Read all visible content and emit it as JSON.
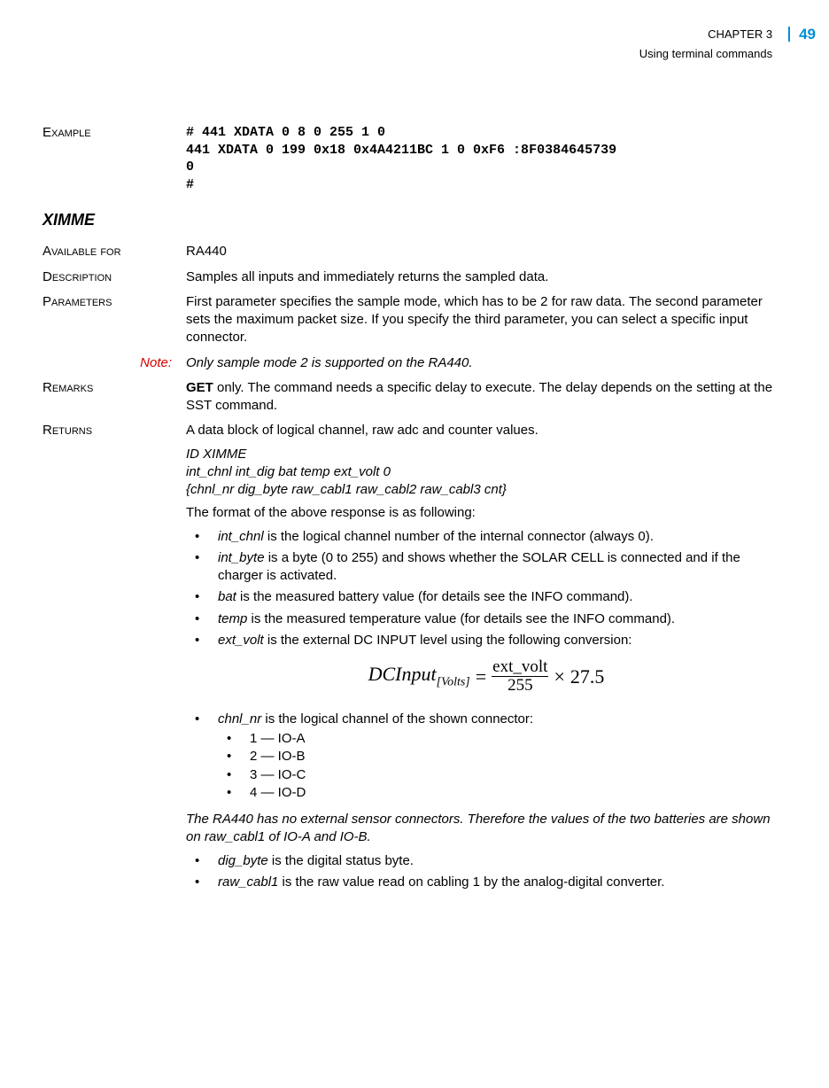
{
  "header": {
    "chapter": "CHAPTER 3",
    "subtitle": "Using terminal commands",
    "page_number": "49"
  },
  "example": {
    "label": "Example",
    "code": "# 441 XDATA 0 8 0 255 1 0\n441 XDATA 0 199 0x18 0x4A4211BC 1 0 0xF6 :8F0384645739\n0\n#"
  },
  "command_title": "XIMME",
  "available_for": {
    "label": "Available for",
    "value": "RA440"
  },
  "description": {
    "label": "Description",
    "value": "Samples all inputs and immediately returns the sampled data."
  },
  "parameters": {
    "label": "Parameters",
    "value": "First parameter specifies the sample mode, which has to be 2 for raw data. The second parameter sets the maximum packet size. If you specify the third parameter, you can select a specific input connector."
  },
  "note": {
    "label": "Note:",
    "value": "Only sample mode 2 is supported on the RA440."
  },
  "remarks": {
    "label": "Remarks",
    "bold_word": "GET",
    "rest": " only. The command needs a specific delay to execute. The delay depends on the setting at the SST command."
  },
  "returns": {
    "label": "Returns",
    "intro": "A data block of logical channel, raw adc and counter values.",
    "response_block": "ID XIMME\nint_chnl int_dig bat temp ext_volt 0\n{chnl_nr dig_byte raw_cabl1 raw_cabl2 raw_cabl3 cnt}",
    "format_line": "The format of the above response is as following:",
    "bullets": [
      {
        "term": "int_chnl",
        "rest": " is the logical channel number of the internal connector (always 0)."
      },
      {
        "term": "int_byte",
        "rest": " is a byte (0 to 255) and shows whether the SOLAR CELL is connected and if the charger is activated."
      },
      {
        "term": "bat",
        "rest": " is the measured battery value (for details see the INFO command)."
      },
      {
        "term": "temp",
        "rest": " is the measured temperature value (for details see the INFO command)."
      },
      {
        "term": "ext_volt",
        "rest": " is the external DC INPUT level using the following conversion:"
      }
    ],
    "formula": {
      "lhs": "DCInput",
      "lhs_sub": "[Volts]",
      "eq": "=",
      "frac_num": "ext_volt",
      "frac_den": "255",
      "times": "×",
      "const": "27.5"
    },
    "chnl_bullet": {
      "term": "chnl_nr",
      "rest": " is the logical channel of the shown connector:"
    },
    "channels": [
      "1 — IO-A",
      "2 — IO-B",
      "3 — IO-C",
      "4 — IO-D"
    ],
    "ra440_note": "The RA440 has no external sensor connectors. Therefore the values of the two batteries are shown on raw_cabl1 of IO-A and IO-B.",
    "trailing_bullets": [
      {
        "term": "dig_byte",
        "rest": " is the digital status byte."
      },
      {
        "term": "raw_cabl1",
        "rest": " is the raw value read on cabling 1 by the analog-digital converter."
      }
    ]
  },
  "colors": {
    "accent": "#008fd5",
    "note_red": "#d40000",
    "text": "#000000",
    "background": "#ffffff"
  },
  "typography": {
    "body_font": "Verdana",
    "mono_font": "Courier New",
    "formula_font": "Times New Roman",
    "body_size_pt": 11,
    "mono_size_pt": 11,
    "formula_size_pt": 16
  }
}
